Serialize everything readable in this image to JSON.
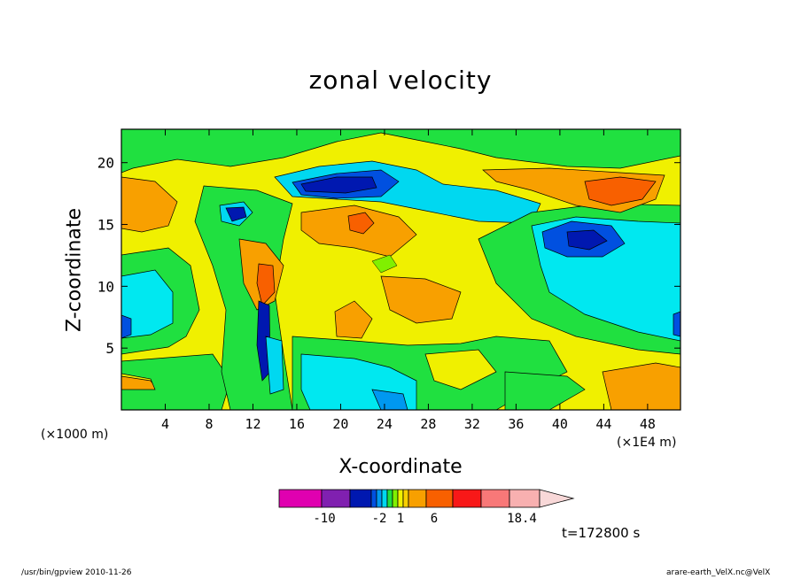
{
  "chart_data": {
    "type": "heatmap",
    "title": "zonal velocity",
    "xlabel": "X-coordinate",
    "ylabel": "Z-coordinate",
    "x_unit_left": "(×1000 m)",
    "x_unit_right": "(×1E4 m)",
    "x_ticks": [
      4,
      8,
      12,
      16,
      20,
      24,
      28,
      32,
      36,
      40,
      44,
      48
    ],
    "y_ticks": [
      5,
      10,
      15,
      20
    ],
    "xlim": [
      0,
      51
    ],
    "ylim": [
      0,
      22.7
    ],
    "colorbar": {
      "colors": [
        "#e000b0",
        "#8020b0",
        "#0018b0",
        "#0050e0",
        "#0098f0",
        "#00d8f0",
        "#20e040",
        "#80f000",
        "#f0f000",
        "#f8d000",
        "#f8a000",
        "#f86000",
        "#f81818",
        "#f87878",
        "#f8b0b0",
        "#f8d8d8"
      ],
      "tick_labels": [
        "-10",
        "-2",
        "1",
        "6",
        "18.4"
      ]
    },
    "time_label": "t=172800 s"
  },
  "footer": {
    "left": "/usr/bin/gpview   2010-11-26",
    "right": "arare-earth_VelX.nc@VelX"
  }
}
